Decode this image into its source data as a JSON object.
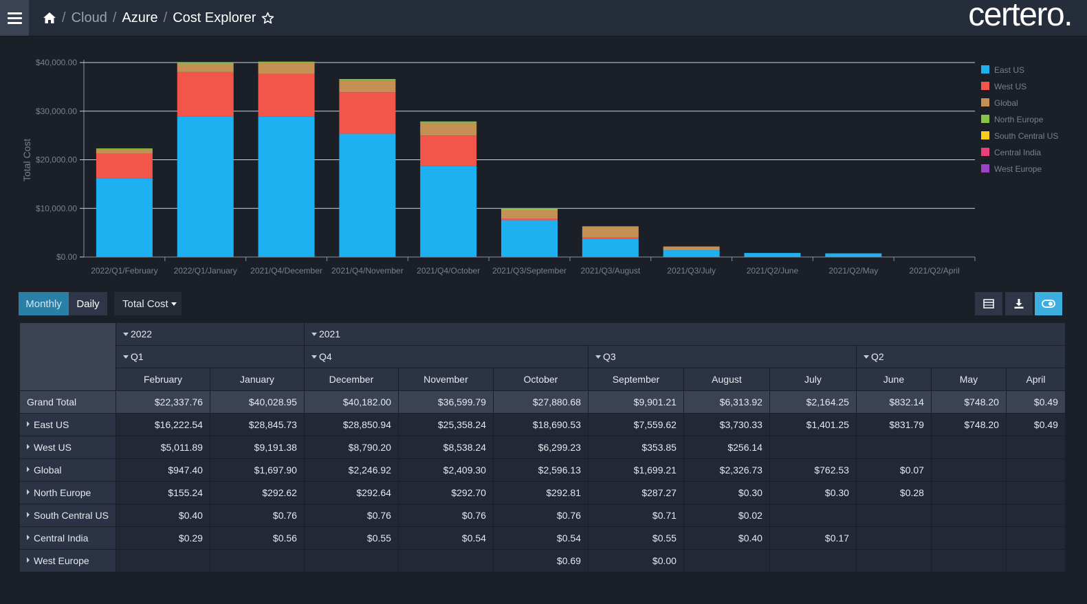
{
  "breadcrumb": {
    "cloud": "Cloud",
    "azure": "Azure",
    "current": "Cost Explorer",
    "sep": "/"
  },
  "logo": "certero.",
  "colors": {
    "East US": "#1fb0f2",
    "West US": "#f2554a",
    "Global": "#c49054",
    "North Europe": "#8bc34a",
    "South Central US": "#f9cc1e",
    "Central India": "#ec3f7a",
    "West Europe": "#9c42c6"
  },
  "chart_data": {
    "type": "bar",
    "stacked": true,
    "ylabel": "Total Cost",
    "ylim": [
      0,
      40000
    ],
    "yticks": [
      "$0.00",
      "$10,000.00",
      "$20,000.00",
      "$30,000.00",
      "$40,000.00"
    ],
    "categories": [
      "2022/Q1/February",
      "2022/Q1/January",
      "2021/Q4/December",
      "2021/Q4/November",
      "2021/Q4/October",
      "2021/Q3/September",
      "2021/Q3/August",
      "2021/Q3/July",
      "2021/Q2/June",
      "2021/Q2/May",
      "2021/Q2/April"
    ],
    "series": [
      {
        "name": "East US",
        "values": [
          16222.54,
          28845.73,
          28850.94,
          25358.24,
          18690.53,
          7559.62,
          3730.33,
          1401.25,
          831.79,
          748.2,
          0.49
        ]
      },
      {
        "name": "West US",
        "values": [
          5011.89,
          9191.38,
          8790.2,
          8538.24,
          6299.23,
          353.85,
          256.14,
          0,
          0,
          0,
          0
        ]
      },
      {
        "name": "Global",
        "values": [
          947.4,
          1697.9,
          2246.92,
          2409.3,
          2596.13,
          1699.21,
          2326.73,
          762.53,
          0.07,
          0,
          0
        ]
      },
      {
        "name": "North Europe",
        "values": [
          155.24,
          292.62,
          292.64,
          292.7,
          292.81,
          287.27,
          0.3,
          0.3,
          0.28,
          0,
          0
        ]
      },
      {
        "name": "South Central US",
        "values": [
          0.4,
          0.76,
          0.76,
          0.76,
          0.76,
          0.71,
          0.02,
          0,
          0,
          0,
          0
        ]
      },
      {
        "name": "Central India",
        "values": [
          0.29,
          0.56,
          0.55,
          0.54,
          0.54,
          0.55,
          0.4,
          0.17,
          0,
          0,
          0
        ]
      },
      {
        "name": "West Europe",
        "values": [
          0,
          0,
          0,
          0,
          0.69,
          0.0,
          0,
          0,
          0,
          0,
          0
        ]
      }
    ],
    "legend_position": "right"
  },
  "controls": {
    "monthly": "Monthly",
    "daily": "Daily",
    "measure": "Total Cost"
  },
  "table": {
    "years": [
      "2022",
      "2021"
    ],
    "quarters": [
      "Q1",
      "Q4",
      "Q3",
      "Q2"
    ],
    "months": [
      "February",
      "January",
      "December",
      "November",
      "October",
      "September",
      "August",
      "July",
      "June",
      "May",
      "April"
    ],
    "rows": [
      {
        "label": "Grand Total",
        "cells": [
          "$22,337.76",
          "$40,028.95",
          "$40,182.00",
          "$36,599.79",
          "$27,880.68",
          "$9,901.21",
          "$6,313.92",
          "$2,164.25",
          "$832.14",
          "$748.20",
          "$0.49"
        ]
      },
      {
        "label": "East US",
        "cells": [
          "$16,222.54",
          "$28,845.73",
          "$28,850.94",
          "$25,358.24",
          "$18,690.53",
          "$7,559.62",
          "$3,730.33",
          "$1,401.25",
          "$831.79",
          "$748.20",
          "$0.49"
        ]
      },
      {
        "label": "West US",
        "cells": [
          "$5,011.89",
          "$9,191.38",
          "$8,790.20",
          "$8,538.24",
          "$6,299.23",
          "$353.85",
          "$256.14",
          "",
          "",
          "",
          ""
        ]
      },
      {
        "label": "Global",
        "cells": [
          "$947.40",
          "$1,697.90",
          "$2,246.92",
          "$2,409.30",
          "$2,596.13",
          "$1,699.21",
          "$2,326.73",
          "$762.53",
          "$0.07",
          "",
          ""
        ]
      },
      {
        "label": "North Europe",
        "cells": [
          "$155.24",
          "$292.62",
          "$292.64",
          "$292.70",
          "$292.81",
          "$287.27",
          "$0.30",
          "$0.30",
          "$0.28",
          "",
          ""
        ]
      },
      {
        "label": "South Central US",
        "cells": [
          "$0.40",
          "$0.76",
          "$0.76",
          "$0.76",
          "$0.76",
          "$0.71",
          "$0.02",
          "",
          "",
          "",
          ""
        ]
      },
      {
        "label": "Central India",
        "cells": [
          "$0.29",
          "$0.56",
          "$0.55",
          "$0.54",
          "$0.54",
          "$0.55",
          "$0.40",
          "$0.17",
          "",
          "",
          ""
        ]
      },
      {
        "label": "West Europe",
        "cells": [
          "",
          "",
          "",
          "",
          "$0.69",
          "$0.00",
          "",
          "",
          "",
          "",
          ""
        ]
      }
    ]
  }
}
